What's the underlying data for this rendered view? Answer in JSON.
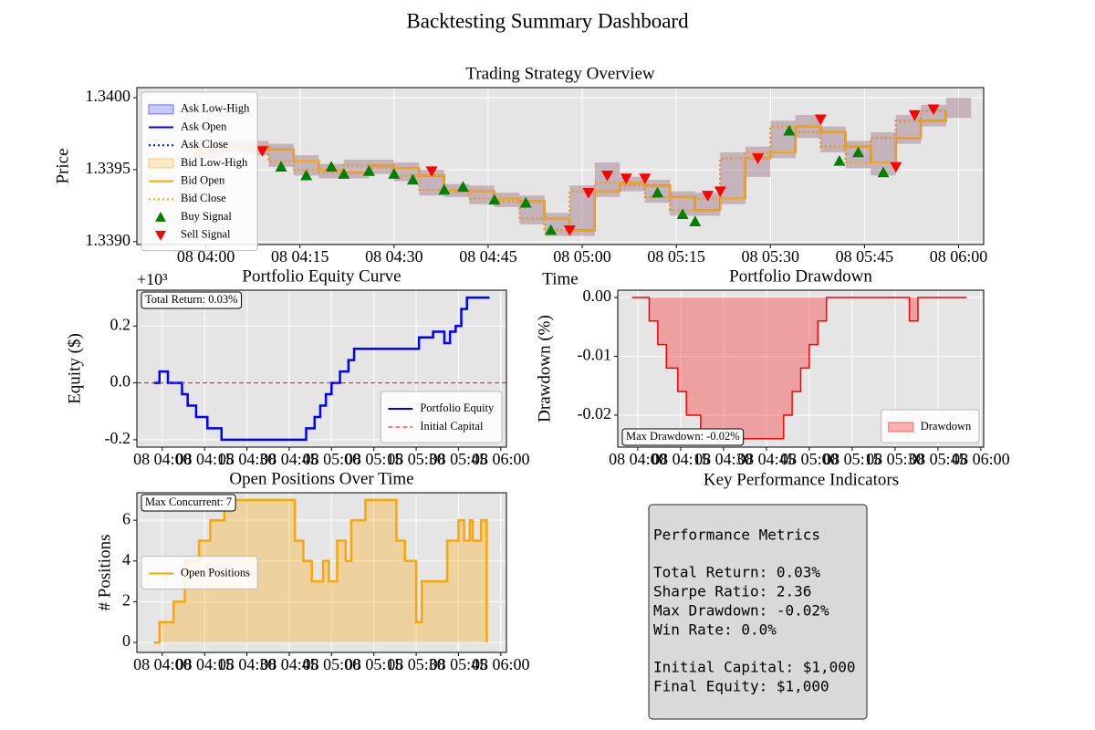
{
  "title": "Backtesting Summary Dashboard",
  "chart_data": [
    {
      "type": "line",
      "title": "Trading Strategy Overview",
      "xlabel": "Time",
      "ylabel": "Price",
      "xlim": [
        "08 03:49",
        "08 06:04"
      ],
      "xticks": [
        "08 04:00",
        "08 04:15",
        "08 04:30",
        "08 04:45",
        "08 05:00",
        "08 05:15",
        "08 05:30",
        "08 05:45",
        "08 06:00"
      ],
      "ylim": [
        1.33898,
        1.34007
      ],
      "yticks": [
        {
          "value": 1.339,
          "label": "1.3390"
        },
        {
          "value": 1.3395,
          "label": "1.3395"
        },
        {
          "value": 1.34,
          "label": "1.3400"
        }
      ],
      "grid": true,
      "legend": "upper left",
      "x": [
        "08 03:58",
        "08 04:02",
        "08 04:06",
        "08 04:10",
        "08 04:14",
        "08 04:18",
        "08 04:22",
        "08 04:26",
        "08 04:30",
        "08 04:34",
        "08 04:38",
        "08 04:42",
        "08 04:46",
        "08 04:50",
        "08 04:54",
        "08 04:58",
        "08 05:02",
        "08 05:06",
        "08 05:10",
        "08 05:14",
        "08 05:18",
        "08 05:22",
        "08 05:26",
        "08 05:30",
        "08 05:34",
        "08 05:38",
        "08 05:42",
        "08 05:46",
        "08 05:50",
        "08 05:54",
        "08 05:58"
      ],
      "series": [
        {
          "name": "Ask Low-High",
          "style": "band",
          "color": "#0000ff",
          "opacity": 0.2,
          "low": [
            1.33958,
            1.33962,
            1.3396,
            1.33952,
            1.33946,
            1.33944,
            1.33944,
            1.33947,
            1.33942,
            1.33932,
            1.33931,
            1.33926,
            1.33924,
            1.33912,
            1.33904,
            1.33904,
            1.33931,
            1.33935,
            1.33927,
            1.33918,
            1.33918,
            1.33926,
            1.33945,
            1.33958,
            1.33972,
            1.33962,
            1.33951,
            1.33946,
            1.33968,
            1.3398,
            1.33986
          ],
          "high": [
            1.3397,
            1.3397,
            1.3397,
            1.33968,
            1.3396,
            1.33954,
            1.33957,
            1.33957,
            1.33955,
            1.3395,
            1.3394,
            1.33939,
            1.33934,
            1.33932,
            1.3392,
            1.33939,
            1.33955,
            1.33945,
            1.33943,
            1.33935,
            1.33934,
            1.33962,
            1.33966,
            1.33984,
            1.33988,
            1.3398,
            1.3397,
            1.33976,
            1.33988,
            1.33995,
            1.34
          ]
        },
        {
          "name": "Ask Open",
          "style": "line",
          "drawstyle": "steps-post",
          "color": "#0000ff",
          "linewidth": 2,
          "values": [
            1.33962,
            1.33966,
            1.33966,
            1.33964,
            1.33956,
            1.3395,
            1.33948,
            1.33953,
            1.33951,
            1.33946,
            1.33936,
            1.33935,
            1.3393,
            1.33928,
            1.33916,
            1.33908,
            1.33935,
            1.33941,
            1.33939,
            1.33931,
            1.33922,
            1.3393,
            1.33958,
            1.33962,
            1.3398,
            1.33976,
            1.33966,
            1.33955,
            1.33972,
            1.33984,
            1.33991
          ]
        },
        {
          "name": "Ask Close",
          "style": "line",
          "drawstyle": "steps-post",
          "dash": "dotted",
          "color": "#0000ff",
          "linewidth": 2,
          "values": [
            1.33966,
            1.33966,
            1.33964,
            1.33956,
            1.3395,
            1.33948,
            1.33953,
            1.33951,
            1.33946,
            1.33936,
            1.33935,
            1.3393,
            1.33928,
            1.33916,
            1.33908,
            1.33935,
            1.33941,
            1.33939,
            1.33931,
            1.33922,
            1.3393,
            1.33958,
            1.33962,
            1.3398,
            1.33976,
            1.33966,
            1.33955,
            1.33972,
            1.33984,
            1.33991,
            1.3399
          ]
        },
        {
          "name": "Bid Low-High",
          "style": "band",
          "color": "#ffa500",
          "opacity": 0.2,
          "low": [
            1.33958,
            1.33962,
            1.3396,
            1.33952,
            1.33946,
            1.33944,
            1.33944,
            1.33947,
            1.33942,
            1.33932,
            1.33931,
            1.33926,
            1.33924,
            1.33912,
            1.33904,
            1.33904,
            1.33931,
            1.33935,
            1.33927,
            1.33918,
            1.33918,
            1.33926,
            1.33945,
            1.33958,
            1.33972,
            1.33962,
            1.33951,
            1.33946,
            1.33968,
            1.3398,
            1.33986
          ],
          "high": [
            1.3397,
            1.3397,
            1.3397,
            1.33968,
            1.3396,
            1.33954,
            1.33957,
            1.33957,
            1.33955,
            1.3395,
            1.3394,
            1.33939,
            1.33934,
            1.33932,
            1.3392,
            1.33939,
            1.33955,
            1.33945,
            1.33943,
            1.33935,
            1.33934,
            1.33962,
            1.33966,
            1.33984,
            1.33988,
            1.3398,
            1.3397,
            1.33976,
            1.33988,
            1.33995,
            1.34
          ]
        },
        {
          "name": "Bid Open",
          "style": "line",
          "drawstyle": "steps-post",
          "color": "#ffa500",
          "linewidth": 2,
          "values": [
            1.33962,
            1.33966,
            1.33966,
            1.33964,
            1.33956,
            1.3395,
            1.33948,
            1.33953,
            1.33951,
            1.33946,
            1.33936,
            1.33935,
            1.3393,
            1.33928,
            1.33916,
            1.33908,
            1.33935,
            1.33941,
            1.33939,
            1.33931,
            1.33922,
            1.3393,
            1.33958,
            1.33962,
            1.3398,
            1.33976,
            1.33966,
            1.33955,
            1.33972,
            1.33984,
            1.33991
          ]
        },
        {
          "name": "Bid Close",
          "style": "line",
          "drawstyle": "steps-post",
          "dash": "dotted",
          "color": "#ffa500",
          "linewidth": 2,
          "values": [
            1.33966,
            1.33966,
            1.33964,
            1.33956,
            1.3395,
            1.33948,
            1.33953,
            1.33951,
            1.33946,
            1.33936,
            1.33935,
            1.3393,
            1.33928,
            1.33916,
            1.33908,
            1.33935,
            1.33941,
            1.33939,
            1.33931,
            1.33922,
            1.3393,
            1.33958,
            1.33962,
            1.3398,
            1.33976,
            1.33966,
            1.33955,
            1.33972,
            1.33984,
            1.33991,
            1.3399
          ]
        },
        {
          "name": "Buy Signal",
          "style": "scatter",
          "marker": "triangle-up",
          "color": "#008000",
          "x": [
            "08 04:12",
            "08 04:16",
            "08 04:20",
            "08 04:22",
            "08 04:26",
            "08 04:30",
            "08 04:33",
            "08 04:38",
            "08 04:41",
            "08 04:46",
            "08 04:51",
            "08 04:55",
            "08 05:12",
            "08 05:16",
            "08 05:18",
            "08 05:33",
            "08 05:41",
            "08 05:44",
            "08 05:48"
          ],
          "values": [
            1.33952,
            1.33946,
            1.33952,
            1.33947,
            1.33949,
            1.33947,
            1.33943,
            1.33936,
            1.33938,
            1.33929,
            1.33927,
            1.33908,
            1.33934,
            1.33919,
            1.33914,
            1.33977,
            1.33956,
            1.33962,
            1.33948
          ]
        },
        {
          "name": "Sell Signal",
          "style": "scatter",
          "marker": "triangle-down",
          "color": "#ff0000",
          "x": [
            "08 04:09",
            "08 04:36",
            "08 04:58",
            "08 05:01",
            "08 05:04",
            "08 05:07",
            "08 05:10",
            "08 05:20",
            "08 05:22",
            "08 05:28",
            "08 05:38",
            "08 05:50",
            "08 05:53",
            "08 05:56"
          ],
          "values": [
            1.33963,
            1.33949,
            1.33908,
            1.33934,
            1.33946,
            1.33944,
            1.33944,
            1.33932,
            1.33935,
            1.33958,
            1.33985,
            1.33952,
            1.33988,
            1.33992
          ]
        }
      ]
    },
    {
      "type": "line",
      "title": "Portfolio Equity Curve",
      "ylabel": "Equity ($)",
      "offset_text": "+10³",
      "xlim": [
        "08 03:51",
        "08 06:02"
      ],
      "xticks": [
        "08 04:00",
        "08 04:15",
        "08 04:30",
        "08 04:45",
        "08 05:00",
        "08 05:15",
        "08 05:30",
        "08 05:45",
        "08 06:00"
      ],
      "ylim": [
        -0.226,
        0.326
      ],
      "yticks": [
        -0.2,
        {
          "value": 0,
          "label": "0.0"
        },
        0.2
      ],
      "grid": true,
      "legend": "lower right",
      "annotation": "Total Return: 0.03%",
      "annotation_corner": "upper left",
      "series": [
        {
          "name": "Portfolio Equity",
          "style": "line",
          "drawstyle": "steps-post",
          "color": "#0000ff",
          "linewidth": 2.5,
          "x": [
            "08 03:57",
            "08 03:59",
            "08 04:02",
            "08 04:07",
            "08 04:09",
            "08 04:12",
            "08 04:16",
            "08 04:21",
            "08 04:51",
            "08 04:54",
            "08 04:56",
            "08 04:58",
            "08 05:00",
            "08 05:03",
            "08 05:06",
            "08 05:08",
            "08 05:31",
            "08 05:36",
            "08 05:40",
            "08 05:42",
            "08 05:44",
            "08 05:46",
            "08 05:48",
            "08 05:56"
          ],
          "values": [
            0,
            0.04,
            0,
            -0.04,
            -0.08,
            -0.12,
            -0.16,
            -0.2,
            -0.16,
            -0.12,
            -0.08,
            -0.04,
            0,
            0.04,
            0.08,
            0.12,
            0.16,
            0.18,
            0.14,
            0.18,
            0.2,
            0.26,
            0.3,
            0.3
          ]
        },
        {
          "name": "Initial Capital",
          "style": "hline",
          "value": 0,
          "dash": "dashed",
          "color": "#ff0000",
          "linewidth": 1
        }
      ]
    },
    {
      "type": "line",
      "title": "Portfolio Drawdown",
      "ylabel": "Drawdown (%)",
      "xlim": [
        "08 03:53",
        "08 06:01"
      ],
      "xticks": [
        "08 04:00",
        "08 04:15",
        "08 04:30",
        "08 04:45",
        "08 05:00",
        "08 05:15",
        "08 05:30",
        "08 05:45",
        "08 06:00"
      ],
      "ylim": [
        -0.02543,
        0.00124
      ],
      "yticks": [
        -0.02,
        -0.01,
        {
          "value": 0,
          "label": "0.00"
        }
      ],
      "grid": true,
      "legend": "lower right",
      "annotation": "Max Drawdown: -0.02%",
      "annotation_corner": "lower left",
      "series": [
        {
          "name": "Drawdown",
          "style": "area",
          "drawstyle": "steps-post",
          "color": "#ff0000",
          "fill_opacity": 0.3,
          "linewidth": 1.5,
          "x": [
            "08 03:58",
            "08 04:04",
            "08 04:07",
            "08 04:10",
            "08 04:14",
            "08 04:17",
            "08 04:22",
            "08 04:51",
            "08 04:54",
            "08 04:57",
            "08 05:00",
            "08 05:03",
            "08 05:06",
            "08 05:35",
            "08 05:38",
            "08 05:55"
          ],
          "values": [
            0,
            -0.004,
            -0.008,
            -0.012,
            -0.016,
            -0.02,
            -0.024,
            -0.02,
            -0.016,
            -0.012,
            -0.008,
            -0.004,
            0,
            -0.004,
            0,
            0
          ]
        }
      ]
    },
    {
      "type": "line",
      "title": "Open Positions Over Time",
      "ylabel": "# Positions",
      "xlim": [
        "08 03:51",
        "08 06:02"
      ],
      "xticks": [
        "08 04:00",
        "08 04:15",
        "08 04:30",
        "08 04:45",
        "08 05:00",
        "08 05:15",
        "08 05:30",
        "08 05:45",
        "08 06:00"
      ],
      "ylim": [
        -0.49,
        7.35
      ],
      "yticks": [
        0,
        2,
        4,
        6
      ],
      "grid": true,
      "legend": "center left",
      "annotation": "Max Concurrent: 7",
      "annotation_corner": "upper left",
      "series": [
        {
          "name": "Open Positions",
          "style": "line",
          "drawstyle": "steps-post",
          "color": "#ffa500",
          "fill_opacity": 0.3,
          "linewidth": 2.5,
          "x": [
            "08 03:57",
            "08 03:59",
            "08 04:04",
            "08 04:08",
            "08 04:13",
            "08 04:17",
            "08 04:22",
            "08 04:47",
            "08 04:50",
            "08 04:53",
            "08 04:57",
            "08 04:59",
            "08 05:02",
            "08 05:05",
            "08 05:07",
            "08 05:12",
            "08 05:23",
            "08 05:26",
            "08 05:30",
            "08 05:32",
            "08 05:41",
            "08 05:45",
            "08 05:47",
            "08 05:49",
            "08 05:50",
            "08 05:53",
            "08 05:55"
          ],
          "values": [
            0,
            1,
            2,
            4,
            5,
            6,
            7,
            5,
            4,
            3,
            4,
            3,
            5,
            4,
            6,
            7,
            5,
            4,
            1,
            3,
            5,
            6,
            5,
            6,
            5,
            6,
            0
          ]
        }
      ]
    }
  ],
  "kpi_panel": {
    "title": "Key Performance Indicators",
    "heading": "Performance Metrics",
    "metrics": [
      "Total Return: 0.03%",
      "Sharpe Ratio: 2.36",
      "Max Drawdown: -0.02%",
      "Win Rate: 0.0%"
    ],
    "capital": [
      "Initial Capital: $1,000",
      "Final Equity: $1,000"
    ]
  }
}
